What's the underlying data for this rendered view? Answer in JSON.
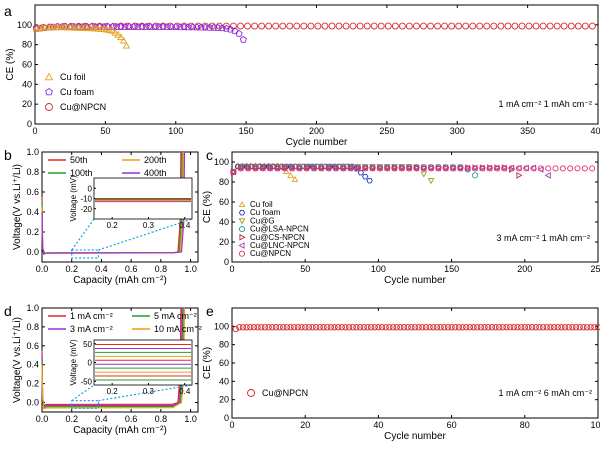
{
  "chart_data": [
    {
      "panel": "a",
      "type": "scatter",
      "xlabel": "Cycle number",
      "ylabel": "CE (%)",
      "xlim": [
        0,
        400
      ],
      "ylim": [
        0,
        120
      ],
      "xticks": [
        "0",
        "50",
        "100",
        "150",
        "200",
        "250",
        "300",
        "350",
        "400"
      ],
      "yticks": [
        "0",
        "20",
        "40",
        "60",
        "80",
        "100"
      ],
      "condition": "1 mA cm⁻²  1 mAh cm⁻²",
      "legend_position": "bottom-left",
      "series": [
        {
          "name": "Cu foil",
          "color": "#e8a020",
          "marker": "triangle-up",
          "x": [
            1,
            5,
            10,
            15,
            20,
            25,
            30,
            35,
            40,
            45,
            50,
            55,
            58,
            60,
            62,
            64,
            65,
            66
          ],
          "y": [
            96,
            97,
            97.5,
            97.6,
            97.5,
            97.3,
            97,
            96.8,
            96.5,
            96,
            95.5,
            94,
            91,
            89,
            86,
            82,
            79,
            77
          ]
        },
        {
          "name": "Cu foam",
          "color": "#8a2be2",
          "marker": "pentagon",
          "x": [
            1,
            10,
            20,
            30,
            40,
            50,
            60,
            70,
            80,
            90,
            100,
            110,
            120,
            130,
            135,
            140,
            143,
            145,
            147,
            148,
            149,
            150
          ],
          "y": [
            96,
            97.5,
            98,
            98,
            98,
            98,
            98,
            98,
            98,
            98,
            97.8,
            97.6,
            97.4,
            97,
            96.5,
            95,
            93,
            91,
            88,
            85,
            82,
            80
          ]
        },
        {
          "name": "Cu@NPCN",
          "color": "#d62728",
          "marker": "circle",
          "x": [
            1,
            20,
            40,
            60,
            80,
            100,
            120,
            140,
            160,
            180,
            200,
            220,
            240,
            260,
            280,
            300,
            320,
            340,
            360,
            380,
            400
          ],
          "y": [
            97,
            98.5,
            98.6,
            98.7,
            98.7,
            98.8,
            98.8,
            98.8,
            98.8,
            98.8,
            98.8,
            98.8,
            98.8,
            98.8,
            98.8,
            98.8,
            98.8,
            98.8,
            98.8,
            98.8,
            98.8
          ]
        }
      ]
    },
    {
      "panel": "b",
      "type": "line",
      "xlabel": "Capacity (mAh cm⁻²)",
      "ylabel": "Voltage(V vs.Li⁺/Li)",
      "xlim": [
        0,
        1.05
      ],
      "ylim": [
        -0.1,
        1.0
      ],
      "xticks": [
        "0.0",
        "0.2",
        "0.4",
        "0.6",
        "0.8",
        "1.0"
      ],
      "yticks": [
        "0.0",
        "0.2",
        "0.4",
        "0.6",
        "0.8",
        "1.0"
      ],
      "legend_position": "top",
      "series": [
        {
          "name": "50th",
          "color": "#e8262a"
        },
        {
          "name": "100th",
          "color": "#21a02c"
        },
        {
          "name": "200th",
          "color": "#f39c12"
        },
        {
          "name": "400th",
          "color": "#9b30d9"
        }
      ],
      "inset": {
        "ylabel": "Voltage (mV)",
        "xlim": [
          0.15,
          0.42
        ],
        "ylim": [
          -30,
          10
        ],
        "xticks": [
          "0.2",
          "0.3",
          "0.4"
        ],
        "yticks": [
          "0",
          "-10",
          "-20"
        ],
        "levels_mV": [
          -10,
          -11,
          -12,
          -13
        ]
      }
    },
    {
      "panel": "c",
      "type": "scatter",
      "xlabel": "Cycle number",
      "ylabel": "CE (%)",
      "xlim": [
        0,
        250
      ],
      "ylim": [
        0,
        110
      ],
      "xticks": [
        "0",
        "50",
        "100",
        "150",
        "200",
        "250"
      ],
      "yticks": [
        "0",
        "20",
        "40",
        "60",
        "80",
        "100"
      ],
      "condition": "3 mA cm⁻²  1 mAh cm⁻²",
      "legend_position": "left",
      "series": [
        {
          "name": "Cu foil",
          "color": "#e8a020",
          "marker": "triangle-up",
          "end_cycle": 45,
          "end_ce": 80
        },
        {
          "name": "Cu foam",
          "color": "#1f3fbf",
          "marker": "hexagon",
          "end_cycle": 95,
          "end_ce": 80
        },
        {
          "name": "Cu@G",
          "color": "#9e9e20",
          "marker": "triangle-down",
          "end_cycle": 137,
          "end_ce": 80
        },
        {
          "name": "Cu@LSA-NPCN",
          "color": "#20a0a0",
          "marker": "circle",
          "end_cycle": 170,
          "end_ce": 82
        },
        {
          "name": "Cu@CS-NPCN",
          "color": "#b03040",
          "marker": "triangle-right",
          "end_cycle": 200,
          "end_ce": 82
        },
        {
          "name": "Cu@LNC-NPCN",
          "color": "#a040b0",
          "marker": "triangle-left",
          "end_cycle": 220,
          "end_ce": 82
        },
        {
          "name": "Cu@NPCN",
          "color": "#e83070",
          "marker": "circle",
          "end_cycle": 250,
          "end_ce": 97
        }
      ]
    },
    {
      "panel": "d",
      "type": "line",
      "xlabel": "Capacity (mAh cm⁻²)",
      "ylabel": "Voltage(V vs.Li⁺/Li)",
      "xlim": [
        0,
        1.05
      ],
      "ylim": [
        -0.1,
        1.0
      ],
      "xticks": [
        "0.0",
        "0.2",
        "0.4",
        "0.6",
        "0.8",
        "1.0"
      ],
      "yticks": [
        "0.0",
        "0.2",
        "0.4",
        "0.6",
        "0.8",
        "1.0"
      ],
      "legend_position": "top",
      "series": [
        {
          "name": "1 mA cm⁻²",
          "color": "#e8262a"
        },
        {
          "name": "3 mA cm⁻²",
          "color": "#9b30d9"
        },
        {
          "name": "5 mA cm⁻²",
          "color": "#21a02c"
        },
        {
          "name": "10 mA cm⁻²",
          "color": "#f39c12"
        }
      ],
      "inset": {
        "ylabel": "Voltage (mV)",
        "xlim": [
          0.15,
          0.42
        ],
        "ylim": [
          -60,
          60
        ],
        "xticks": [
          "0.2",
          "0.3",
          "0.4"
        ],
        "yticks": [
          "50",
          "0",
          "-50"
        ]
      }
    },
    {
      "panel": "e",
      "type": "scatter",
      "xlabel": "Cycle number",
      "ylabel": "CE (%)",
      "xlim": [
        0,
        100
      ],
      "ylim": [
        0,
        120
      ],
      "xticks": [
        "0",
        "20",
        "40",
        "60",
        "80",
        "100"
      ],
      "yticks": [
        "0",
        "20",
        "40",
        "60",
        "80",
        "100"
      ],
      "condition": "1 mA cm⁻²  6 mAh cm⁻²",
      "legend_position": "bottom-left",
      "series": [
        {
          "name": "Cu@NPCN",
          "color": "#d62728",
          "marker": "circle",
          "x_start": 1,
          "x_end": 100,
          "ce_first": 97,
          "ce": 99
        }
      ]
    }
  ]
}
